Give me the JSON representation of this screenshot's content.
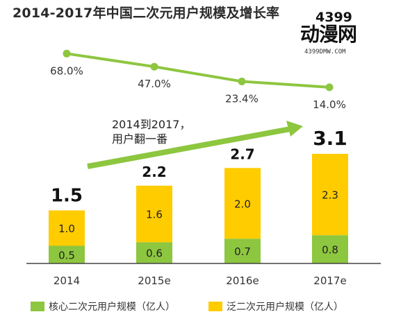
{
  "title": "2014-2017年中国二次元用户规模及增长率",
  "logo": {
    "number": "4399",
    "brand": "动漫网",
    "url": "4399DMW.COM"
  },
  "annotation": {
    "line1": "2014到2017，",
    "line2": "用户翻一番"
  },
  "colors": {
    "core": "#8dc63f",
    "broad": "#ffcc00",
    "line": "#8dc63f",
    "arrow": "#8dc63f"
  },
  "chart_data": {
    "type": "bar",
    "stacked": true,
    "categories": [
      "2014",
      "2015e",
      "2016e",
      "2017e"
    ],
    "series": [
      {
        "name": "核心二次元用户规模（亿人）",
        "values": [
          0.5,
          0.6,
          0.7,
          0.8
        ],
        "labels": [
          "0.5",
          "0.6",
          "0.7",
          "0.8"
        ]
      },
      {
        "name": "泛二次元用户规模（亿人）",
        "values": [
          1.0,
          1.6,
          2.0,
          2.3
        ],
        "labels": [
          "1.0",
          "1.6",
          "2.0",
          "2.3"
        ]
      }
    ],
    "totals": [
      "1.5",
      "2.2",
      "2.7",
      "3.1"
    ],
    "growth_rate": {
      "type": "line",
      "values": [
        68.0,
        47.0,
        23.4,
        14.0
      ],
      "labels": [
        "68.0%",
        "47.0%",
        "23.4%",
        "14.0%"
      ]
    },
    "legend_position": "bottom",
    "grid": false
  }
}
